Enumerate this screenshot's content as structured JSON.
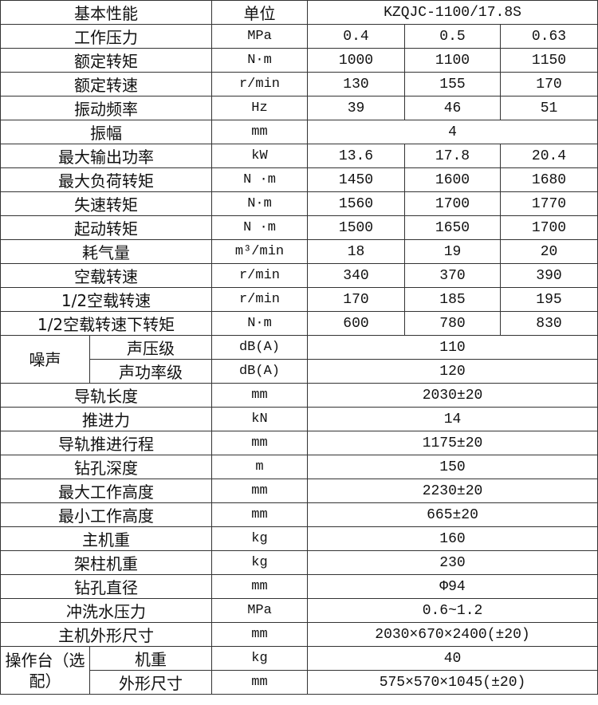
{
  "header": {
    "label": "基本性能",
    "unit": "单位",
    "model": "KZQJC-1100/17.8S"
  },
  "rows": [
    {
      "label": "工作压力",
      "unit": "MPa",
      "values": [
        "0.4",
        "0.5",
        "0.63"
      ]
    },
    {
      "label": "额定转矩",
      "unit": "N·m",
      "values": [
        "1000",
        "1100",
        "1150"
      ]
    },
    {
      "label": "额定转速",
      "unit": "r/min",
      "values": [
        "130",
        "155",
        "170"
      ]
    },
    {
      "label": "振动频率",
      "unit": "Hz",
      "values": [
        "39",
        "46",
        "51"
      ]
    },
    {
      "label": "振幅",
      "unit": "mm",
      "values": [
        "4"
      ]
    },
    {
      "label": "最大输出功率",
      "unit": "kW",
      "values": [
        "13.6",
        "17.8",
        "20.4"
      ]
    },
    {
      "label": "最大负荷转矩",
      "unit": "N ·m",
      "values": [
        "1450",
        "1600",
        "1680"
      ]
    },
    {
      "label": "失速转矩",
      "unit": "N·m",
      "values": [
        "1560",
        "1700",
        "1770"
      ]
    },
    {
      "label": "起动转矩",
      "unit": "N ·m",
      "values": [
        "1500",
        "1650",
        "1700"
      ]
    },
    {
      "label": "耗气量",
      "unit": "m³/min",
      "values": [
        "18",
        "19",
        "20"
      ]
    },
    {
      "label": "空载转速",
      "unit": "r/min",
      "values": [
        "340",
        "370",
        "390"
      ]
    },
    {
      "label": "1/2空载转速",
      "unit": "r/min",
      "values": [
        "170",
        "185",
        "195"
      ]
    },
    {
      "label": "1/2空载转速下转矩",
      "unit": "N·m",
      "values": [
        "600",
        "780",
        "830"
      ]
    },
    {
      "group": "噪声",
      "label": "声压级",
      "unit": "dB(A)",
      "values": [
        "110"
      ]
    },
    {
      "group_cont": true,
      "label": "声功率级",
      "unit": "dB(A)",
      "values": [
        "120"
      ]
    },
    {
      "label": "导轨长度",
      "unit": "mm",
      "values": [
        "2030±20"
      ]
    },
    {
      "label": "推进力",
      "unit": "kN",
      "values": [
        "14"
      ]
    },
    {
      "label": "导轨推进行程",
      "unit": "mm",
      "values": [
        "1175±20"
      ]
    },
    {
      "label": "钻孔深度",
      "unit": "m",
      "values": [
        "150"
      ]
    },
    {
      "label": "最大工作高度",
      "unit": "mm",
      "values": [
        "2230±20"
      ]
    },
    {
      "label": "最小工作高度",
      "unit": "mm",
      "values": [
        "665±20"
      ]
    },
    {
      "label": "主机重",
      "unit": "kg",
      "values": [
        "160"
      ]
    },
    {
      "label": "架柱机重",
      "unit": "kg",
      "values": [
        "230"
      ]
    },
    {
      "label": "钻孔直径",
      "unit": "mm",
      "values": [
        "Φ94"
      ]
    },
    {
      "label": "冲洗水压力",
      "unit": "MPa",
      "values": [
        "0.6~1.2"
      ]
    },
    {
      "label": "主机外形尺寸",
      "unit": "mm",
      "values": [
        "2030×670×2400(±20)"
      ]
    },
    {
      "group": "操作台（选配）",
      "label": "机重",
      "unit": "kg",
      "values": [
        "40"
      ]
    },
    {
      "group_cont": true,
      "label": "外形尺寸",
      "unit": "mm",
      "values": [
        "575×570×1045(±20)"
      ]
    }
  ]
}
